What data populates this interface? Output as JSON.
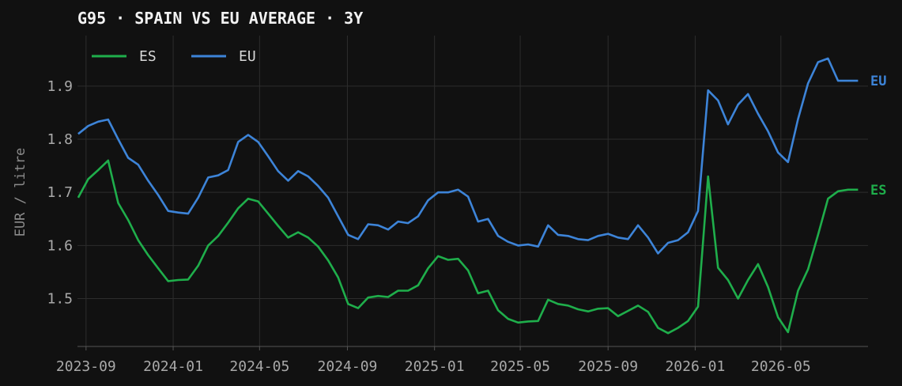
{
  "chart_data": {
    "type": "line",
    "title": "G95 · SPAIN VS EU AVERAGE · 3Y",
    "ylabel": "EUR / litre",
    "xlabel": "",
    "ylim": [
      1.41,
      1.995
    ],
    "xlim": [
      "2023-08-20",
      "2026-08-31"
    ],
    "grid": true,
    "legend": "top-left",
    "y_ticks": [
      1.5,
      1.6,
      1.7,
      1.8,
      1.9
    ],
    "y_tick_labels": [
      "1.5",
      "1.6",
      "1.7",
      "1.8",
      "1.9"
    ],
    "x_ticks": [
      "2023-09-01",
      "2024-01-01",
      "2024-05-01",
      "2024-09-01",
      "2025-01-01",
      "2025-05-01",
      "2025-09-01",
      "2026-01-01",
      "2026-05-01"
    ],
    "x_tick_labels": [
      "2023-09",
      "2024-01",
      "2024-05",
      "2024-09",
      "2025-01",
      "2025-05",
      "2025-09",
      "2026-01",
      "2026-05"
    ],
    "x": [
      "2023-08-21",
      "2023-09-04",
      "2023-09-18",
      "2023-10-02",
      "2023-10-16",
      "2023-10-30",
      "2023-11-13",
      "2023-11-27",
      "2023-12-11",
      "2023-12-25",
      "2024-01-08",
      "2024-01-22",
      "2024-02-05",
      "2024-02-19",
      "2024-03-04",
      "2024-03-18",
      "2024-04-01",
      "2024-04-15",
      "2024-04-29",
      "2024-05-13",
      "2024-05-27",
      "2024-06-10",
      "2024-06-24",
      "2024-07-08",
      "2024-07-22",
      "2024-08-05",
      "2024-08-19",
      "2024-09-02",
      "2024-09-16",
      "2024-09-30",
      "2024-10-14",
      "2024-10-28",
      "2024-11-11",
      "2024-11-25",
      "2024-12-09",
      "2024-12-23",
      "2025-01-06",
      "2025-01-20",
      "2025-02-03",
      "2025-02-17",
      "2025-03-03",
      "2025-03-17",
      "2025-03-31",
      "2025-04-14",
      "2025-04-28",
      "2025-05-12",
      "2025-05-26",
      "2025-06-09",
      "2025-06-23",
      "2025-07-07",
      "2025-07-21",
      "2025-08-04",
      "2025-08-18",
      "2025-09-01",
      "2025-09-15",
      "2025-09-29",
      "2025-10-13",
      "2025-10-27",
      "2025-11-10",
      "2025-11-24",
      "2025-12-08",
      "2025-12-22",
      "2026-01-05",
      "2026-01-19",
      "2026-02-02",
      "2026-02-16",
      "2026-03-02",
      "2026-03-16",
      "2026-03-30",
      "2026-04-13",
      "2026-04-27",
      "2026-05-11",
      "2026-05-25",
      "2026-06-08",
      "2026-06-22",
      "2026-07-06",
      "2026-07-20",
      "2026-08-03",
      "2026-08-17"
    ],
    "series": [
      {
        "name": "ES",
        "color": "#1fae4b",
        "end_label": "ES",
        "values": [
          1.69,
          1.725,
          1.742,
          1.76,
          1.68,
          1.648,
          1.61,
          1.582,
          1.557,
          1.533,
          1.535,
          1.536,
          1.562,
          1.6,
          1.618,
          1.643,
          1.67,
          1.688,
          1.683,
          1.66,
          1.637,
          1.615,
          1.625,
          1.615,
          1.598,
          1.572,
          1.54,
          1.49,
          1.482,
          1.502,
          1.505,
          1.503,
          1.515,
          1.515,
          1.525,
          1.557,
          1.58,
          1.573,
          1.575,
          1.553,
          1.51,
          1.515,
          1.478,
          1.462,
          1.455,
          1.457,
          1.458,
          1.498,
          1.49,
          1.487,
          1.48,
          1.476,
          1.481,
          1.482,
          1.467,
          1.477,
          1.487,
          1.475,
          1.445,
          1.435,
          1.445,
          1.458,
          1.485,
          1.73,
          1.558,
          1.535,
          1.5,
          1.535,
          1.565,
          1.522,
          1.465,
          1.437,
          1.515,
          1.555,
          1.62,
          1.688,
          1.702,
          1.705,
          1.705
        ]
      },
      {
        "name": "EU",
        "color": "#3d84d8",
        "end_label": "EU",
        "values": [
          1.81,
          1.825,
          1.833,
          1.837,
          1.8,
          1.765,
          1.752,
          1.722,
          1.695,
          1.665,
          1.662,
          1.66,
          1.69,
          1.728,
          1.732,
          1.742,
          1.795,
          1.808,
          1.795,
          1.768,
          1.74,
          1.722,
          1.74,
          1.73,
          1.712,
          1.69,
          1.655,
          1.62,
          1.612,
          1.64,
          1.638,
          1.63,
          1.645,
          1.642,
          1.655,
          1.685,
          1.7,
          1.7,
          1.705,
          1.692,
          1.645,
          1.65,
          1.618,
          1.607,
          1.6,
          1.602,
          1.598,
          1.638,
          1.62,
          1.618,
          1.612,
          1.61,
          1.618,
          1.622,
          1.615,
          1.612,
          1.638,
          1.615,
          1.585,
          1.605,
          1.61,
          1.625,
          1.665,
          1.892,
          1.873,
          1.828,
          1.865,
          1.885,
          1.848,
          1.815,
          1.775,
          1.757,
          1.838,
          1.905,
          1.945,
          1.952,
          1.91,
          1.91,
          1.91
        ]
      }
    ]
  }
}
